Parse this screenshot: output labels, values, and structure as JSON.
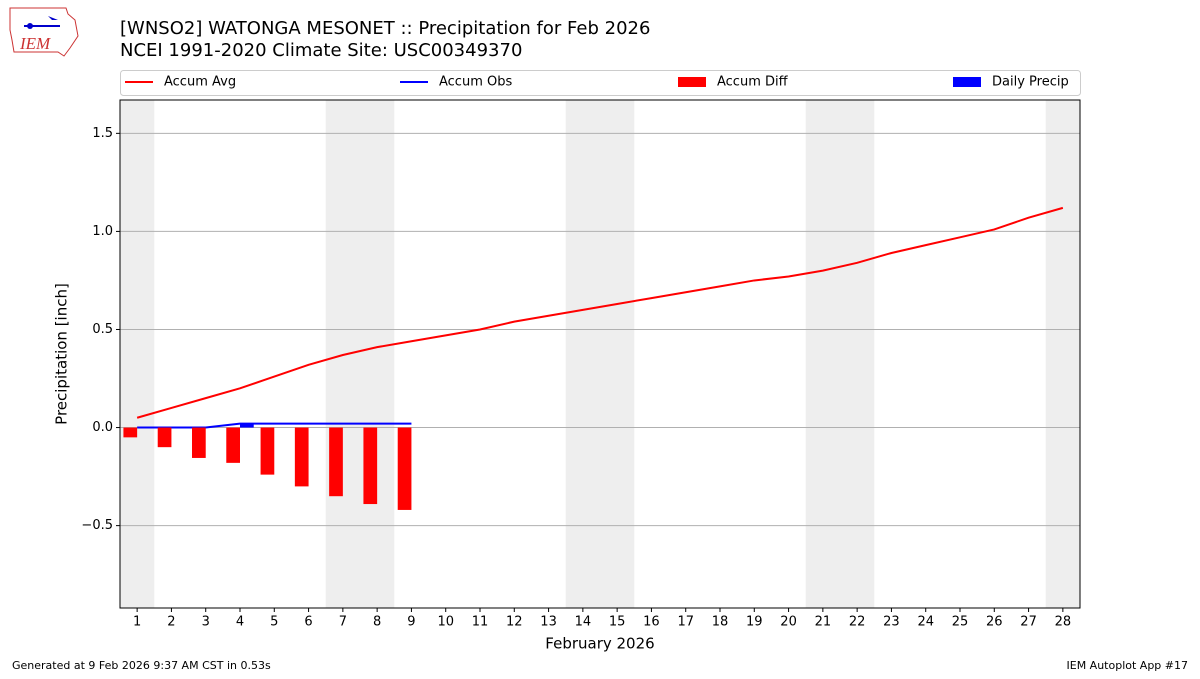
{
  "logo_text": "IEM",
  "footer_left": "Generated at 9 Feb 2026 9:37 AM CST in 0.53s",
  "footer_right": "IEM Autoplot App #17",
  "chart_data": {
    "type": "combo",
    "title": "[WNSO2] WATONGA MESONET :: Precipitation for Feb 2026",
    "subtitle": "NCEI 1991-2020 Climate Site: USC00349370",
    "x_label": "February 2026",
    "y_label": "Precipitation [inch]",
    "x": [
      1,
      2,
      3,
      4,
      5,
      6,
      7,
      8,
      9,
      10,
      11,
      12,
      13,
      14,
      15,
      16,
      17,
      18,
      19,
      20,
      21,
      22,
      23,
      24,
      25,
      26,
      27,
      28
    ],
    "xlim": [
      0.5,
      28.5
    ],
    "xticks": [
      1,
      2,
      3,
      4,
      5,
      6,
      7,
      8,
      9,
      10,
      11,
      12,
      13,
      14,
      15,
      16,
      17,
      18,
      19,
      20,
      21,
      22,
      23,
      24,
      25,
      26,
      27,
      28
    ],
    "ylim": [
      -0.92,
      1.67
    ],
    "yticks": [
      {
        "value": -0.5,
        "label": "−0.5"
      },
      {
        "value": 0,
        "label": "0.0"
      },
      0.5,
      {
        "value": 1,
        "label": "1.0"
      },
      1.5
    ],
    "grid": true,
    "shaded_days": [
      1,
      7,
      8,
      14,
      15,
      21,
      22,
      28
    ],
    "shade_color": "#eeeeee",
    "series": [
      {
        "name": "Accum Avg",
        "type": "line",
        "color": "#ff0000",
        "values": [
          0.05,
          0.1,
          0.15,
          0.2,
          0.26,
          0.32,
          0.37,
          0.41,
          0.44,
          0.47,
          0.5,
          0.54,
          0.57,
          0.6,
          0.63,
          0.66,
          0.69,
          0.72,
          0.75,
          0.77,
          0.8,
          0.84,
          0.89,
          0.93,
          0.97,
          1.01,
          1.07,
          1.12
        ]
      },
      {
        "name": "Accum Obs",
        "type": "line",
        "color": "#0000ff",
        "values": [
          0,
          0,
          0,
          0.02,
          0.02,
          0.02,
          0.02,
          0.02,
          0.02,
          null,
          null,
          null,
          null,
          null,
          null,
          null,
          null,
          null,
          null,
          null,
          null,
          null,
          null,
          null,
          null,
          null,
          null,
          null
        ]
      },
      {
        "name": "Accum Diff",
        "type": "bar",
        "color": "#ff0000",
        "values": [
          -0.05,
          -0.1,
          -0.155,
          -0.18,
          -0.24,
          -0.3,
          -0.35,
          -0.39,
          -0.42,
          null,
          null,
          null,
          null,
          null,
          null,
          null,
          null,
          null,
          null,
          null,
          null,
          null,
          null,
          null,
          null,
          null,
          null,
          null
        ]
      },
      {
        "name": "Daily Precip",
        "type": "bar",
        "color": "#0000ff",
        "values": [
          0,
          0,
          0,
          0.02,
          0,
          0,
          0,
          0,
          0,
          null,
          null,
          null,
          null,
          null,
          null,
          null,
          null,
          null,
          null,
          null,
          null,
          null,
          null,
          null,
          null,
          null,
          null,
          null
        ]
      }
    ]
  }
}
